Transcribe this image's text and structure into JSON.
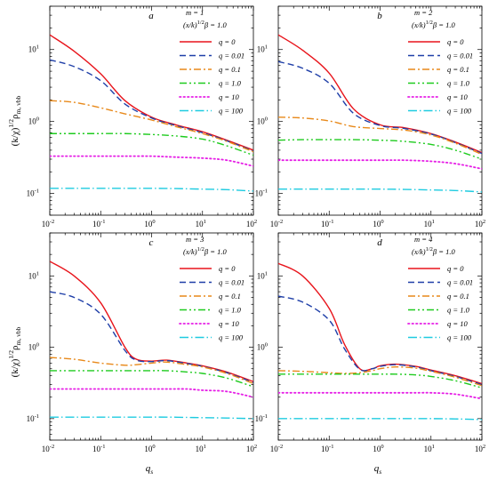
{
  "figure": {
    "ylabel": "(k/χ)",
    "ylabel_sup": "1/2",
    "ylabel_rho": "ρ",
    "ylabel_sub": "m, vbb",
    "xlabel": "q",
    "xlabel_sub": "s",
    "param_beta": "(x/k)",
    "param_beta_sup": "1/2",
    "param_beta_tail": "β = 1.0"
  },
  "chart_data": [
    {
      "type": "line",
      "panel": "a",
      "m_label": "m = 1",
      "xscale": "log",
      "yscale": "log",
      "xlim": [
        0.01,
        100
      ],
      "ylim": [
        0.05,
        40
      ],
      "x_ticks": [
        "10",
        "10",
        "10",
        "10",
        "10"
      ],
      "x_tick_exp": [
        "-2",
        "-1",
        "0",
        "1",
        "2"
      ],
      "y_ticks": [
        "10",
        "10",
        "10"
      ],
      "y_tick_exp": [
        "-1",
        "0",
        "1"
      ],
      "x": [
        0.01,
        0.03,
        0.1,
        0.3,
        1,
        3,
        10,
        30,
        100
      ],
      "series": [
        {
          "name": "q = 0",
          "color": "#e8141b",
          "dash": "solid",
          "values": [
            16,
            9.5,
            4.6,
            1.95,
            1.15,
            0.9,
            0.72,
            0.55,
            0.4
          ]
        },
        {
          "name": "q = 0.01",
          "color": "#1f3fa8",
          "dash": "dash",
          "values": [
            7.2,
            5.8,
            3.7,
            1.75,
            1.12,
            0.88,
            0.7,
            0.54,
            0.39
          ]
        },
        {
          "name": "q = 0.1",
          "color": "#e8891a",
          "dash": "dashdot",
          "values": [
            1.95,
            1.85,
            1.55,
            1.28,
            1.05,
            0.85,
            0.68,
            0.53,
            0.38
          ]
        },
        {
          "name": "q = 1.0",
          "color": "#1ecb1e",
          "dash": "dashdotdot",
          "values": [
            0.68,
            0.68,
            0.68,
            0.68,
            0.66,
            0.63,
            0.57,
            0.46,
            0.34
          ]
        },
        {
          "name": "q = 10",
          "color": "#e61ee6",
          "dash": "dot",
          "values": [
            0.33,
            0.33,
            0.33,
            0.33,
            0.33,
            0.32,
            0.31,
            0.29,
            0.24
          ]
        },
        {
          "name": "q = 100",
          "color": "#1ecbe0",
          "dash": "longdashdot",
          "values": [
            0.118,
            0.118,
            0.118,
            0.118,
            0.118,
            0.117,
            0.115,
            0.113,
            0.108
          ]
        }
      ]
    },
    {
      "type": "line",
      "panel": "b",
      "m_label": "m = 2",
      "xscale": "log",
      "yscale": "log",
      "xlim": [
        0.01,
        100
      ],
      "ylim": [
        0.05,
        40
      ],
      "x_ticks": [
        "10",
        "10",
        "10",
        "10",
        "10"
      ],
      "x_tick_exp": [
        "-2",
        "-1",
        "0",
        "1",
        "2"
      ],
      "y_ticks": [
        "10",
        "10",
        "10"
      ],
      "y_tick_exp": [
        "-1",
        "0",
        "1"
      ],
      "x": [
        0.01,
        0.03,
        0.1,
        0.3,
        1,
        3,
        10,
        30,
        100
      ],
      "series": [
        {
          "name": "q = 0",
          "color": "#e8141b",
          "dash": "solid",
          "values": [
            16,
            9.8,
            4.7,
            1.5,
            0.9,
            0.82,
            0.68,
            0.52,
            0.37
          ]
        },
        {
          "name": "q = 0.01",
          "color": "#1f3fa8",
          "dash": "dash",
          "values": [
            6.8,
            5.5,
            3.4,
            1.3,
            0.88,
            0.8,
            0.67,
            0.51,
            0.36
          ]
        },
        {
          "name": "q = 0.1",
          "color": "#e8891a",
          "dash": "dashdot",
          "values": [
            1.15,
            1.12,
            1.02,
            0.85,
            0.8,
            0.76,
            0.65,
            0.5,
            0.35
          ]
        },
        {
          "name": "q = 1.0",
          "color": "#1ecb1e",
          "dash": "dashdotdot",
          "values": [
            0.55,
            0.56,
            0.56,
            0.56,
            0.55,
            0.53,
            0.48,
            0.4,
            0.3
          ]
        },
        {
          "name": "q = 10",
          "color": "#e61ee6",
          "dash": "dot",
          "values": [
            0.29,
            0.29,
            0.29,
            0.29,
            0.29,
            0.29,
            0.28,
            0.26,
            0.22
          ]
        },
        {
          "name": "q = 100",
          "color": "#1ecbe0",
          "dash": "longdashdot",
          "values": [
            0.115,
            0.115,
            0.115,
            0.115,
            0.115,
            0.114,
            0.112,
            0.11,
            0.105
          ]
        }
      ]
    },
    {
      "type": "line",
      "panel": "c",
      "m_label": "m = 3",
      "xscale": "log",
      "yscale": "log",
      "xlim": [
        0.01,
        100
      ],
      "ylim": [
        0.05,
        40
      ],
      "x_ticks": [
        "10",
        "10",
        "10",
        "10",
        "10"
      ],
      "x_tick_exp": [
        "-2",
        "-1",
        "0",
        "1",
        "2"
      ],
      "y_ticks": [
        "10",
        "10",
        "10"
      ],
      "y_tick_exp": [
        "-1",
        "0",
        "1"
      ],
      "x": [
        0.01,
        0.03,
        0.1,
        0.3,
        0.5,
        1,
        2,
        5,
        10,
        30,
        100
      ],
      "series": [
        {
          "name": "q = 0",
          "color": "#e8141b",
          "dash": "solid",
          "values": [
            16,
            10,
            4.2,
            1.0,
            0.68,
            0.64,
            0.66,
            0.6,
            0.55,
            0.45,
            0.33
          ]
        },
        {
          "name": "q = 0.01",
          "color": "#1f3fa8",
          "dash": "dash",
          "values": [
            6.0,
            5.0,
            2.9,
            0.9,
            0.66,
            0.63,
            0.65,
            0.59,
            0.54,
            0.44,
            0.32
          ]
        },
        {
          "name": "q = 0.1",
          "color": "#e8891a",
          "dash": "dashdot",
          "values": [
            0.72,
            0.68,
            0.6,
            0.56,
            0.57,
            0.6,
            0.62,
            0.57,
            0.53,
            0.43,
            0.31
          ]
        },
        {
          "name": "q = 1.0",
          "color": "#1ecb1e",
          "dash": "dashdotdot",
          "values": [
            0.47,
            0.47,
            0.47,
            0.47,
            0.47,
            0.47,
            0.47,
            0.45,
            0.43,
            0.37,
            0.28
          ]
        },
        {
          "name": "q = 10",
          "color": "#e61ee6",
          "dash": "dot",
          "values": [
            0.26,
            0.26,
            0.26,
            0.26,
            0.26,
            0.26,
            0.26,
            0.26,
            0.25,
            0.24,
            0.2
          ]
        },
        {
          "name": "q = 100",
          "color": "#1ecbe0",
          "dash": "longdashdot",
          "values": [
            0.105,
            0.105,
            0.105,
            0.105,
            0.105,
            0.105,
            0.105,
            0.104,
            0.103,
            0.102,
            0.1
          ]
        }
      ]
    },
    {
      "type": "line",
      "panel": "d",
      "m_label": "m = 4",
      "xscale": "log",
      "yscale": "log",
      "xlim": [
        0.01,
        100
      ],
      "ylim": [
        0.05,
        40
      ],
      "x_ticks": [
        "10",
        "10",
        "10",
        "10",
        "10"
      ],
      "x_tick_exp": [
        "-2",
        "-1",
        "0",
        "1",
        "2"
      ],
      "y_ticks": [
        "10",
        "10",
        "10"
      ],
      "y_tick_exp": [
        "-1",
        "0",
        "1"
      ],
      "x": [
        0.01,
        0.03,
        0.1,
        0.2,
        0.4,
        0.7,
        1,
        2,
        5,
        10,
        30,
        100
      ],
      "series": [
        {
          "name": "q = 0",
          "color": "#e8141b",
          "dash": "solid",
          "values": [
            15,
            10,
            3.5,
            1.1,
            0.5,
            0.5,
            0.55,
            0.58,
            0.54,
            0.48,
            0.4,
            0.31
          ]
        },
        {
          "name": "q = 0.01",
          "color": "#1f3fa8",
          "dash": "dash",
          "values": [
            5.2,
            4.3,
            2.4,
            0.95,
            0.49,
            0.5,
            0.54,
            0.57,
            0.53,
            0.47,
            0.39,
            0.3
          ]
        },
        {
          "name": "q = 0.1",
          "color": "#e8891a",
          "dash": "dashdot",
          "values": [
            0.47,
            0.46,
            0.44,
            0.43,
            0.44,
            0.47,
            0.5,
            0.53,
            0.51,
            0.46,
            0.38,
            0.29
          ]
        },
        {
          "name": "q = 1.0",
          "color": "#1ecb1e",
          "dash": "dashdotdot",
          "values": [
            0.42,
            0.42,
            0.42,
            0.42,
            0.42,
            0.42,
            0.42,
            0.42,
            0.41,
            0.39,
            0.34,
            0.27
          ]
        },
        {
          "name": "q = 10",
          "color": "#e61ee6",
          "dash": "dot",
          "values": [
            0.23,
            0.23,
            0.23,
            0.23,
            0.23,
            0.23,
            0.23,
            0.23,
            0.23,
            0.23,
            0.22,
            0.19
          ]
        },
        {
          "name": "q = 100",
          "color": "#1ecbe0",
          "dash": "longdashdot",
          "values": [
            0.1,
            0.1,
            0.1,
            0.1,
            0.1,
            0.1,
            0.1,
            0.1,
            0.1,
            0.1,
            0.099,
            0.097
          ]
        }
      ]
    }
  ]
}
